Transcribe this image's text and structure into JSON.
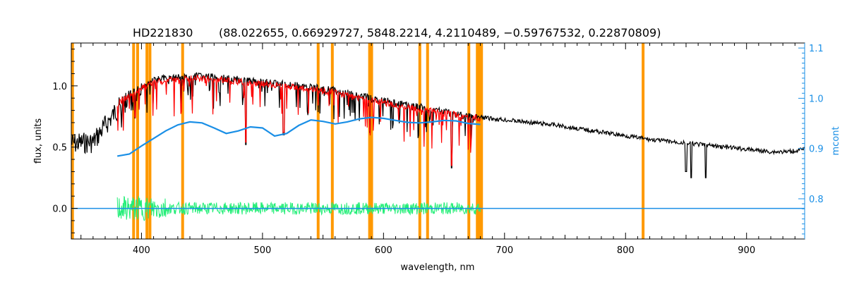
{
  "chart_data": {
    "type": "line",
    "title_object": "HD221830",
    "title_params": "(88.022655, 0.66929727, 5848.2214, 4.2110489, −0.59767532, 0.22870809)",
    "xlabel": "wavelength, nm",
    "ylabel": "flux, units",
    "y2label": "mcont",
    "xlim": [
      342,
      948
    ],
    "ylim": [
      -0.25,
      1.35
    ],
    "y2lim": [
      0.72,
      1.11
    ],
    "x_ticks": [
      400,
      500,
      600,
      700,
      800,
      900
    ],
    "y_ticks": [
      0.0,
      0.5,
      1.0
    ],
    "y_tick_labels": [
      "0.0",
      "0.5",
      "1.0"
    ],
    "y2_ticks": [
      0.8,
      0.9,
      1.0,
      1.1
    ],
    "y2_tick_labels": [
      "0.8",
      "0.9",
      "1.0",
      "1.1"
    ],
    "colors": {
      "observed": "#000000",
      "model": "#ff0000",
      "residual": "#22ee77",
      "continuum": "#1a8fe6",
      "mask": "#ff9900"
    },
    "mask_lines_nm": [
      343,
      393.5,
      396.8,
      404.5,
      407,
      434,
      546,
      557.7,
      588.5,
      590.2,
      630,
      636.4,
      670.5,
      677.5,
      679.5,
      681,
      814.5
    ],
    "series": [
      {
        "role": "observed",
        "x": [
          342,
          360,
          380,
          395,
          410,
          430,
          445,
          460,
          480,
          500,
          520,
          540,
          560,
          580,
          600,
          620,
          640,
          660,
          680,
          700,
          720,
          740,
          760,
          780,
          800,
          820,
          840,
          860,
          880,
          900,
          920,
          935,
          948
        ],
        "y": [
          0.62,
          0.63,
          0.9,
          1.0,
          1.08,
          1.1,
          1.11,
          1.1,
          1.08,
          1.06,
          1.04,
          1.02,
          0.99,
          0.95,
          0.91,
          0.87,
          0.84,
          0.8,
          0.76,
          0.74,
          0.72,
          0.7,
          0.67,
          0.64,
          0.61,
          0.58,
          0.56,
          0.54,
          0.52,
          0.5,
          0.48,
          0.48,
          0.5
        ]
      },
      {
        "role": "model",
        "x": [
          380,
          395,
          410,
          430,
          445,
          460,
          480,
          500,
          520,
          540,
          560,
          580,
          600,
          620,
          640,
          660,
          680
        ],
        "y": [
          0.88,
          0.98,
          1.06,
          1.08,
          1.09,
          1.08,
          1.06,
          1.04,
          1.02,
          1.0,
          0.97,
          0.93,
          0.89,
          0.85,
          0.82,
          0.79,
          0.76
        ]
      },
      {
        "role": "continuum",
        "x": [
          380,
          390,
          400,
          410,
          420,
          430,
          440,
          450,
          460,
          470,
          480,
          490,
          500,
          510,
          520,
          530,
          540,
          550,
          560,
          570,
          580,
          590,
          600,
          610,
          620,
          630,
          640,
          650,
          660,
          670,
          680
        ],
        "y": [
          0.885,
          0.889,
          0.905,
          0.92,
          0.935,
          0.947,
          0.953,
          0.951,
          0.941,
          0.93,
          0.935,
          0.943,
          0.941,
          0.925,
          0.93,
          0.946,
          0.957,
          0.954,
          0.949,
          0.953,
          0.959,
          0.962,
          0.96,
          0.956,
          0.952,
          0.951,
          0.953,
          0.956,
          0.955,
          0.95,
          0.948
        ]
      },
      {
        "role": "residual",
        "x": [
          380,
          680
        ],
        "y": [
          0.0,
          0.0
        ]
      },
      {
        "role": "continuum-zero",
        "x": [
          342,
          948
        ],
        "y": [
          0.0,
          0.0
        ]
      }
    ],
    "absorption_features": [
      {
        "x": 486.1,
        "y": 0.52
      },
      {
        "x": 517.5,
        "y": 0.6
      },
      {
        "x": 588.9,
        "y": 0.62
      },
      {
        "x": 656.3,
        "y": 0.33
      },
      {
        "x": 850,
        "y": 0.3
      },
      {
        "x": 854.2,
        "y": 0.25
      },
      {
        "x": 866.2,
        "y": 0.25
      }
    ],
    "grid": false,
    "legend": "none"
  }
}
